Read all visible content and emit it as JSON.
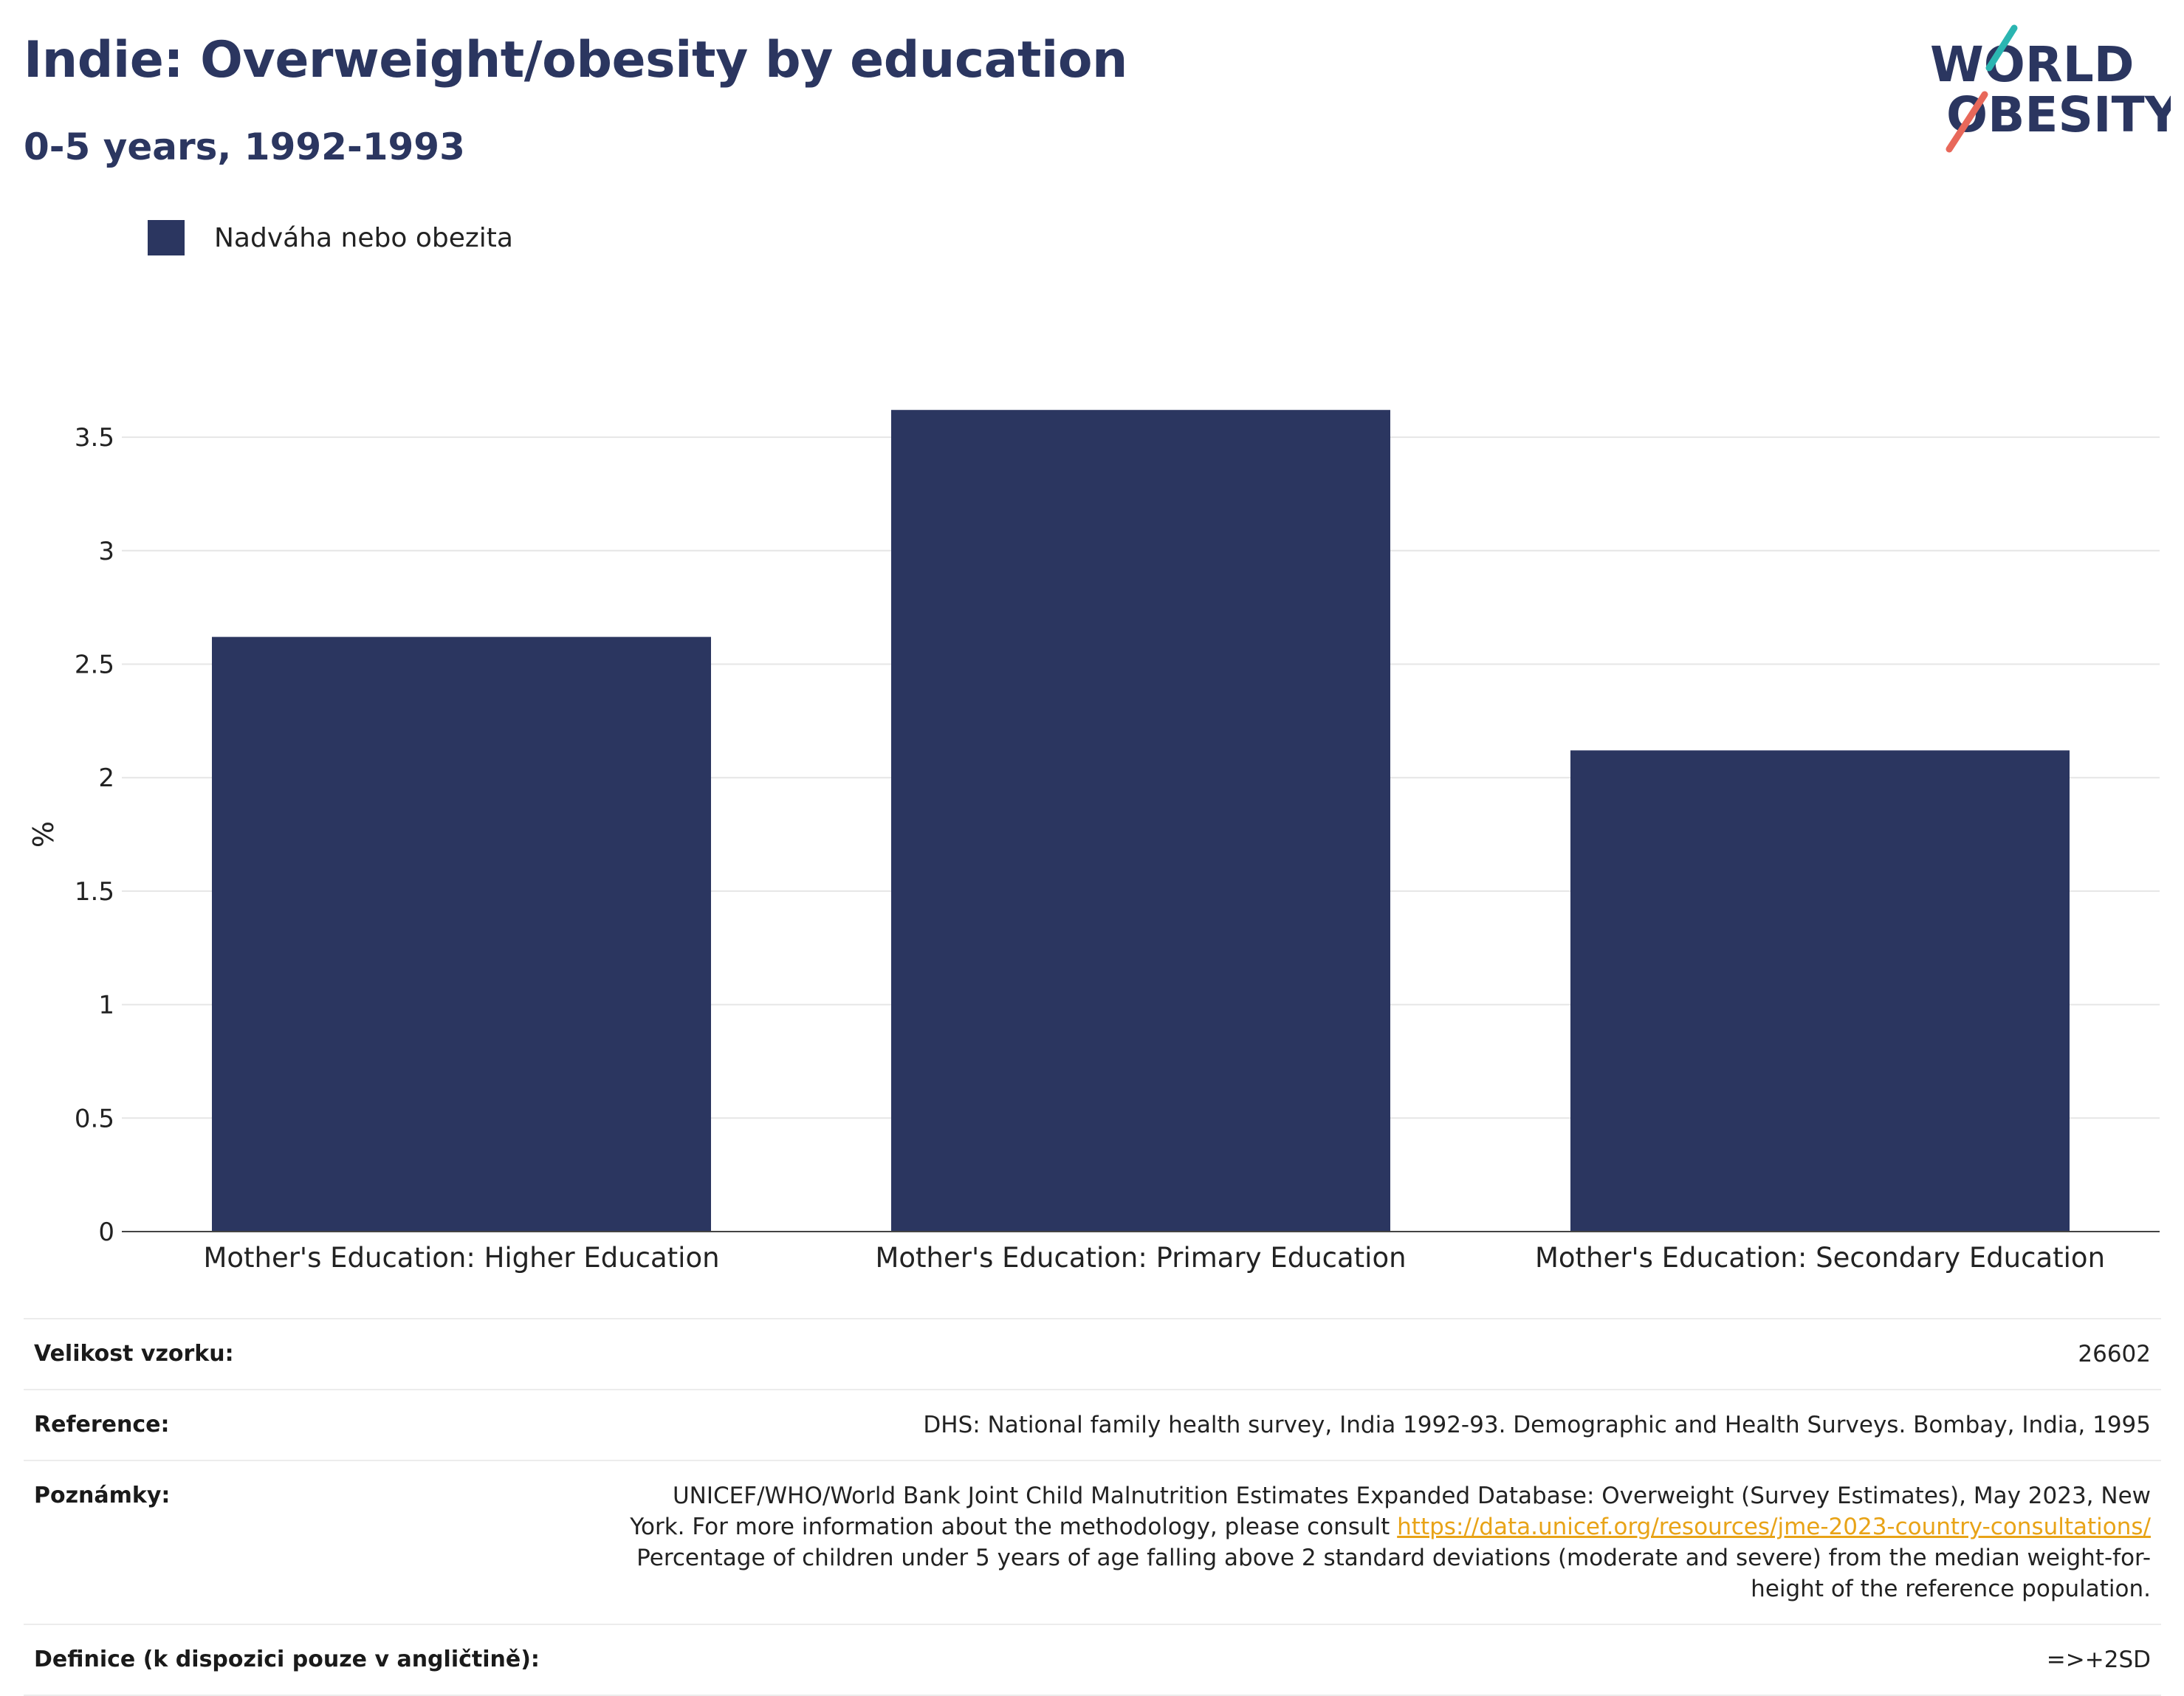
{
  "header": {
    "title": "Indie: Overweight/obesity by education",
    "subtitle": "0-5 years, 1992-1993"
  },
  "logo": {
    "line1": "WORLD",
    "line2": "OBESITY",
    "accent_teal": "#2bb5b1",
    "accent_coral": "#e8685a",
    "color": "#2b3660"
  },
  "legend": {
    "label": "Nadváha nebo obezita",
    "color": "#2b3660"
  },
  "chart_data": {
    "type": "bar",
    "categories": [
      "Mother's Education: Higher Education",
      "Mother's Education: Primary Education",
      "Mother's Education: Secondary Education"
    ],
    "series": [
      {
        "name": "Nadváha nebo obezita",
        "values": [
          2.62,
          3.62,
          2.12
        ],
        "color": "#2b3660"
      }
    ],
    "ylabel": "%",
    "ylim": [
      0,
      3.5
    ],
    "yticks": [
      0,
      0.5,
      1,
      1.5,
      2,
      2.5,
      3,
      3.5
    ],
    "ytick_labels": [
      "0",
      "0.5",
      "1",
      "1.5",
      "2",
      "2.5",
      "3",
      "3.5"
    ],
    "grid": true,
    "legend_position": "top-left"
  },
  "info": {
    "sample_size_label": "Velikost vzorku:",
    "sample_size_value": "26602",
    "reference_label": "Reference:",
    "reference_value": "DHS: National family health survey, India 1992-93. Demographic and Health Surveys. Bombay, India, 1995",
    "notes_label": "Poznámky:",
    "notes_text_1": "UNICEF/WHO/World Bank Joint Child Malnutrition Estimates Expanded Database: Overweight (Survey Estimates), May 2023, New York. For more information about the methodology, please consult ",
    "notes_link": "https://data.unicef.org/resources/jme-2023-country-consultations/",
    "notes_text_2": "Percentage of children under 5 years of age falling above 2 standard deviations (moderate and severe) from the median weight-for-height of the reference population.",
    "definition_label": "Definice (k dispozici pouze v angličtině):",
    "definition_value": "=>+2SD"
  }
}
